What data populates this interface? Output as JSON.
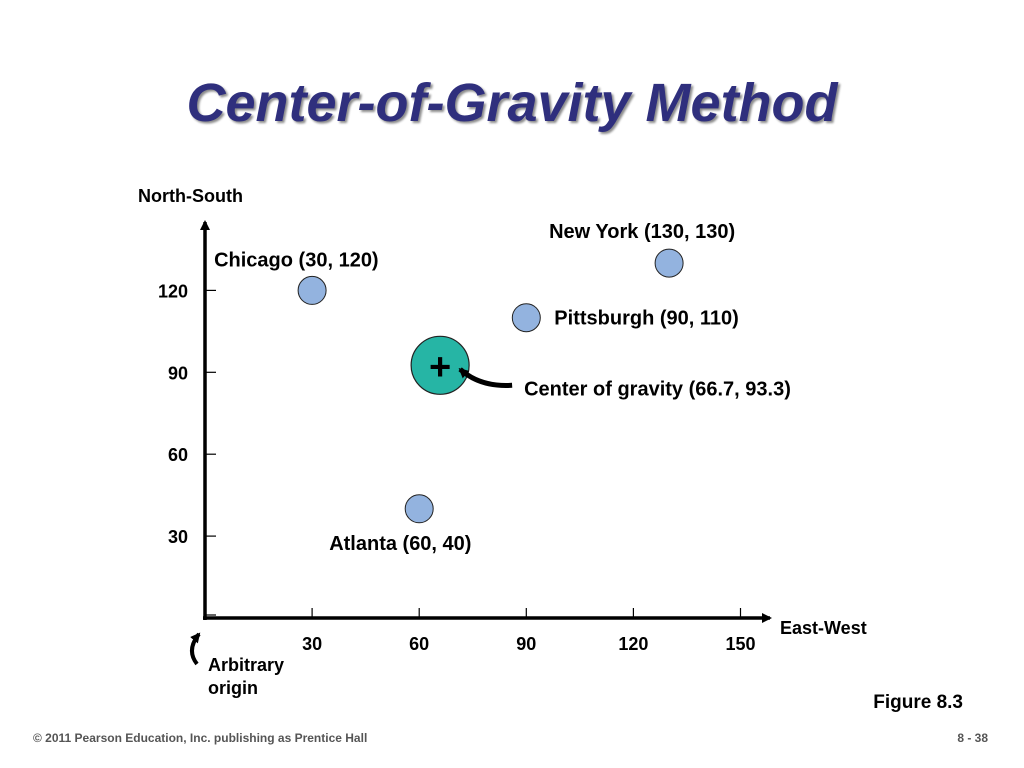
{
  "slide": {
    "title": "Center-of-Gravity Method",
    "figure_label": "Figure 8.3",
    "copyright": "© 2011 Pearson Education, Inc. publishing as Prentice Hall",
    "page_number": "8 - 38"
  },
  "chart_data": {
    "type": "scatter",
    "xlabel": "East-West",
    "ylabel": "North-South",
    "x_ticks": [
      30,
      60,
      90,
      120,
      150
    ],
    "y_ticks": [
      30,
      60,
      90,
      120
    ],
    "xlim": [
      0,
      160
    ],
    "ylim": [
      0,
      140
    ],
    "grid": false,
    "points": [
      {
        "label": "Chicago (30, 120)",
        "x": 30,
        "y": 120
      },
      {
        "label": "New York (130, 130)",
        "x": 130,
        "y": 130
      },
      {
        "label": "Pittsburgh (90, 110)",
        "x": 90,
        "y": 110
      },
      {
        "label": "Atlanta (60, 40)",
        "x": 60,
        "y": 40
      }
    ],
    "center": {
      "label": "Center of gravity (66.7, 93.3)",
      "x": 66.7,
      "y": 93.3,
      "marker": "+"
    },
    "origin_annotation": "Arbitrary origin",
    "colors": {
      "point": "#93b3df",
      "center": "#26b5a5",
      "axis": "#000000"
    }
  }
}
